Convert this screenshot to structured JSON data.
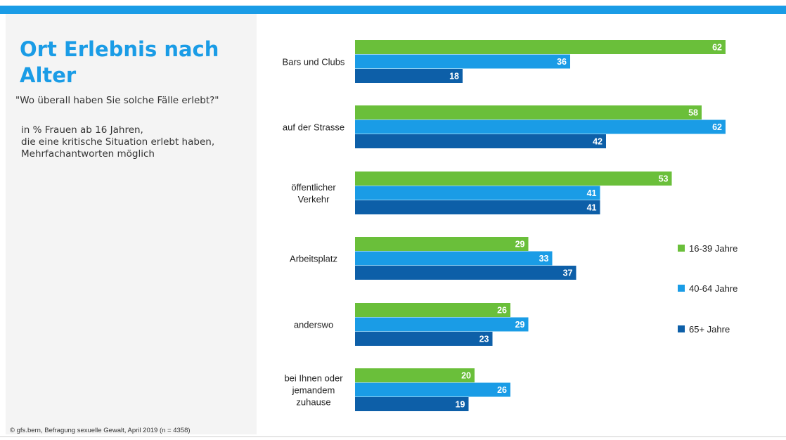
{
  "page": {
    "title": "Ort Erlebnis nach Alter",
    "question": "\"Wo überall haben Sie solche Fälle erlebt?\"",
    "description_lines": [
      "in % Frauen ab 16 Jahren,",
      "die eine kritische Situation erlebt haben,",
      "Mehrfachantworten möglich"
    ],
    "source": "© gfs.bern, Befragung sexuelle Gewalt, April 2019 (n = 4358)"
  },
  "colors": {
    "accent": "#1a9ce6",
    "series_16_39": "#6abf3a",
    "series_40_64": "#1a9ce6",
    "series_65plus": "#0d5fa8"
  },
  "chart_data": {
    "type": "bar",
    "orientation": "horizontal",
    "categories": [
      [
        "Bars und Clubs"
      ],
      [
        "auf der Strasse"
      ],
      [
        "öffentlicher",
        "Verkehr"
      ],
      [
        "Arbeitsplatz"
      ],
      [
        "anderswo"
      ],
      [
        "bei Ihnen oder",
        "jemandem",
        "zuhause"
      ]
    ],
    "series": [
      {
        "name": "16-39 Jahre",
        "color": "#6abf3a",
        "values": [
          62,
          58,
          53,
          29,
          26,
          20
        ]
      },
      {
        "name": "40-64 Jahre",
        "color": "#1a9ce6",
        "values": [
          36,
          62,
          41,
          33,
          29,
          26
        ]
      },
      {
        "name": "65+ Jahre",
        "color": "#0d5fa8",
        "values": [
          18,
          42,
          41,
          37,
          23,
          19
        ]
      }
    ],
    "data_labels": true,
    "legend_position": "right",
    "grid": false
  }
}
